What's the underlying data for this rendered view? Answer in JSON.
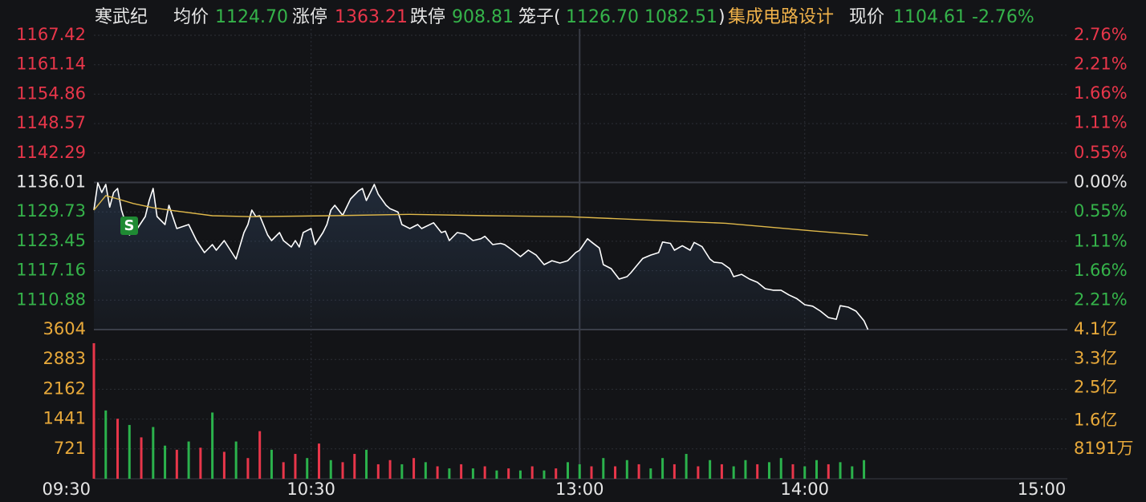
{
  "header": [
    {
      "text": "寒武纪",
      "color": "#e6e6e6"
    },
    {
      "text": "均价",
      "color": "#e6e6e6"
    },
    {
      "text": "1124.70",
      "color": "#35b34a"
    },
    {
      "text": "涨停",
      "color": "#e6e6e6"
    },
    {
      "text": "1363.21",
      "color": "#e8364a"
    },
    {
      "text": "跌停",
      "color": "#e6e6e6"
    },
    {
      "text": "908.81",
      "color": "#35b34a"
    },
    {
      "text": "笼子(",
      "color": "#e6e6e6"
    },
    {
      "text": "1126.70 1082.51",
      "color": "#35b34a"
    },
    {
      "text": ")",
      "color": "#e6e6e6"
    },
    {
      "text": "集成电路设计",
      "color": "#f0b24a"
    },
    {
      "text": "现价",
      "color": "#e6e6e6"
    },
    {
      "text": "1104.61",
      "color": "#35b34a"
    },
    {
      "text": "-2.76%",
      "color": "#35b34a"
    }
  ],
  "marker": "S",
  "chart_data": {
    "type": "line",
    "xlim": [
      0,
      240
    ],
    "xticks": [
      {
        "value": 0,
        "label": "09:30"
      },
      {
        "value": 55,
        "label": "10:30"
      },
      {
        "value": 123,
        "label": "13:00"
      },
      {
        "value": 180,
        "label": "14:00"
      },
      {
        "value": 240,
        "label": "15:00"
      }
    ],
    "ylim": [
      1104.6,
      1167.42
    ],
    "yticks": [
      1167.42,
      1161.14,
      1154.86,
      1148.57,
      1142.29,
      1136.01,
      1129.73,
      1123.45,
      1117.16,
      1110.88
    ],
    "ytick_colors": [
      "#e8364a",
      "#e8364a",
      "#e8364a",
      "#e8364a",
      "#e8364a",
      "#e6e6e6",
      "#35b34a",
      "#35b34a",
      "#35b34a",
      "#35b34a"
    ],
    "y2lim": [
      -2.76,
      2.76
    ],
    "y2ticks": [
      {
        "value": 2.76,
        "label": "2.76%"
      },
      {
        "value": 2.21,
        "label": "2.21%"
      },
      {
        "value": 1.66,
        "label": "1.66%"
      },
      {
        "value": 1.11,
        "label": "1.11%"
      },
      {
        "value": 0.55,
        "label": "0.55%"
      },
      {
        "value": 0,
        "label": "0.00%"
      },
      {
        "value": -0.55,
        "label": "0.55%"
      },
      {
        "value": -1.11,
        "label": "1.11%"
      },
      {
        "value": -1.66,
        "label": "1.66%"
      },
      {
        "value": -2.21,
        "label": "2.21%"
      }
    ],
    "grid": true,
    "series": [
      {
        "color": "#ffffff",
        "x": [
          0,
          1,
          2,
          3,
          4,
          5,
          6,
          7,
          9,
          11,
          13,
          14,
          15,
          16,
          18,
          19,
          21,
          24,
          26,
          28,
          30,
          31,
          33,
          36,
          38,
          39,
          40,
          41,
          42,
          44,
          45,
          47,
          48,
          50,
          51,
          52,
          53,
          55,
          56,
          58,
          59,
          60,
          61,
          63,
          65,
          67,
          68,
          69,
          70,
          71,
          72,
          74,
          75,
          77,
          78,
          80,
          82,
          83,
          86,
          88,
          89,
          90,
          92,
          94,
          96,
          98,
          99,
          101,
          103,
          104,
          106,
          108,
          110,
          112,
          114,
          116,
          118,
          120,
          122,
          123,
          125,
          126,
          128,
          129,
          131,
          133,
          135,
          136,
          138,
          139,
          141,
          143,
          144,
          146,
          147,
          149,
          151,
          152,
          154,
          156,
          157,
          159,
          161,
          162,
          164,
          166,
          168,
          170,
          172,
          174,
          176,
          178,
          180,
          182,
          184,
          186,
          188,
          189,
          191,
          193,
          195,
          196
        ],
        "values": [
          1130.1,
          1135.92,
          1133.87,
          1135.58,
          1130.74,
          1133.87,
          1134.73,
          1130.1,
          1124.8,
          1126.17,
          1128.74,
          1132.16,
          1134.73,
          1128.74,
          1127.02,
          1131.13,
          1126.17,
          1127.02,
          1123.6,
          1121.03,
          1122.74,
          1121.55,
          1123.6,
          1119.66,
          1125.31,
          1127.02,
          1130.1,
          1128.74,
          1128.9,
          1124.8,
          1123.6,
          1125.31,
          1123.6,
          1122.23,
          1123.6,
          1122.23,
          1125.31,
          1126.17,
          1122.74,
          1125.31,
          1127.02,
          1130.1,
          1131.13,
          1129.0,
          1132.5,
          1134.2,
          1134.73,
          1132.16,
          1133.87,
          1135.58,
          1133.5,
          1131.13,
          1130.4,
          1129.7,
          1127.02,
          1126.17,
          1127.02,
          1126.17,
          1127.4,
          1125.31,
          1125.6,
          1123.6,
          1125.31,
          1124.97,
          1123.6,
          1124.0,
          1124.5,
          1122.74,
          1123.0,
          1122.74,
          1121.55,
          1120.18,
          1121.55,
          1120.5,
          1118.46,
          1119.3,
          1118.81,
          1119.3,
          1121.03,
          1121.55,
          1124.0,
          1123.3,
          1122.0,
          1118.46,
          1117.61,
          1115.38,
          1115.9,
          1116.75,
          1118.8,
          1119.8,
          1120.5,
          1121.03,
          1123.3,
          1123.0,
          1121.55,
          1122.5,
          1121.55,
          1123.2,
          1122.3,
          1119.66,
          1119.0,
          1118.81,
          1117.61,
          1115.9,
          1116.4,
          1115.38,
          1114.7,
          1113.33,
          1113.0,
          1113.0,
          1112.0,
          1111.2,
          1109.91,
          1109.6,
          1108.54,
          1107.17,
          1106.8,
          1109.7,
          1109.4,
          1108.54,
          1106.48,
          1104.61
        ]
      },
      {
        "color": "#e0b94a",
        "x": [
          0,
          3,
          6,
          10,
          15,
          20,
          30,
          40,
          60,
          80,
          100,
          120,
          140,
          160,
          180,
          196
        ],
        "values": [
          1130.1,
          1133.2,
          1132.5,
          1131.5,
          1130.6,
          1130.0,
          1128.9,
          1128.7,
          1128.9,
          1129.2,
          1128.9,
          1128.7,
          1128.0,
          1127.3,
          1125.8,
          1124.7
        ]
      }
    ],
    "volume": {
      "x": [
        0,
        3,
        6,
        9,
        12,
        15,
        18,
        21,
        24,
        27,
        30,
        33,
        36,
        39,
        42,
        45,
        48,
        51,
        54,
        57,
        60,
        63,
        66,
        69,
        72,
        75,
        78,
        81,
        84,
        87,
        90,
        93,
        96,
        99,
        102,
        105,
        108,
        111,
        114,
        117,
        120,
        123,
        126,
        129,
        132,
        135,
        138,
        141,
        144,
        147,
        150,
        153,
        156,
        159,
        162,
        165,
        168,
        171,
        174,
        177,
        180,
        183,
        186,
        189,
        192,
        195
      ],
      "values": [
        3275,
        1650,
        1450,
        1300,
        1000,
        1250,
        800,
        700,
        900,
        750,
        1600,
        650,
        900,
        500,
        1150,
        700,
        400,
        600,
        500,
        850,
        450,
        400,
        600,
        700,
        350,
        450,
        350,
        500,
        400,
        300,
        250,
        350,
        250,
        300,
        200,
        250,
        200,
        300,
        200,
        250,
        400,
        350,
        300,
        500,
        300,
        450,
        350,
        250,
        500,
        350,
        600,
        300,
        450,
        350,
        300,
        450,
        350,
        400,
        500,
        350,
        300,
        450,
        350,
        400,
        300,
        450
      ],
      "colors": [
        "#e8364a",
        "#2bb24c",
        "#e8364a",
        "#2bb24c",
        "#e8364a",
        "#2bb24c",
        "#2bb24c",
        "#e8364a",
        "#2bb24c",
        "#e8364a",
        "#2bb24c",
        "#e8364a",
        "#2bb24c",
        "#e8364a",
        "#e8364a",
        "#2bb24c",
        "#e8364a",
        "#e8364a",
        "#2bb24c",
        "#e8364a",
        "#2bb24c",
        "#e8364a",
        "#e8364a",
        "#2bb24c",
        "#e8364a",
        "#e8364a",
        "#2bb24c",
        "#e8364a",
        "#2bb24c",
        "#e8364a",
        "#2bb24c",
        "#e8364a",
        "#2bb24c",
        "#e8364a",
        "#2bb24c",
        "#e8364a",
        "#2bb24c",
        "#e8364a",
        "#2bb24c",
        "#e8364a",
        "#2bb24c",
        "#2bb24c",
        "#e8364a",
        "#2bb24c",
        "#e8364a",
        "#2bb24c",
        "#e8364a",
        "#2bb24c",
        "#2bb24c",
        "#e8364a",
        "#2bb24c",
        "#e8364a",
        "#2bb24c",
        "#e8364a",
        "#2bb24c",
        "#2bb24c",
        "#e8364a",
        "#2bb24c",
        "#2bb24c",
        "#e8364a",
        "#2bb24c",
        "#2bb24c",
        "#e8364a",
        "#2bb24c",
        "#2bb24c",
        "#2bb24c"
      ],
      "ylim": [
        0,
        3604
      ],
      "yticks": [
        3604,
        2883,
        2162,
        1441,
        721
      ],
      "y2lim": [
        0,
        410000000
      ],
      "y2ticks": [
        {
          "value": 410000000,
          "label": "4.1亿"
        },
        {
          "value": 330000000,
          "label": "3.3亿"
        },
        {
          "value": 250000000,
          "label": "2.5亿"
        },
        {
          "value": 160000000,
          "label": "1.6亿"
        },
        {
          "value": 81910000,
          "label": "8191万"
        }
      ],
      "tick_color": "#e8a93a"
    }
  }
}
